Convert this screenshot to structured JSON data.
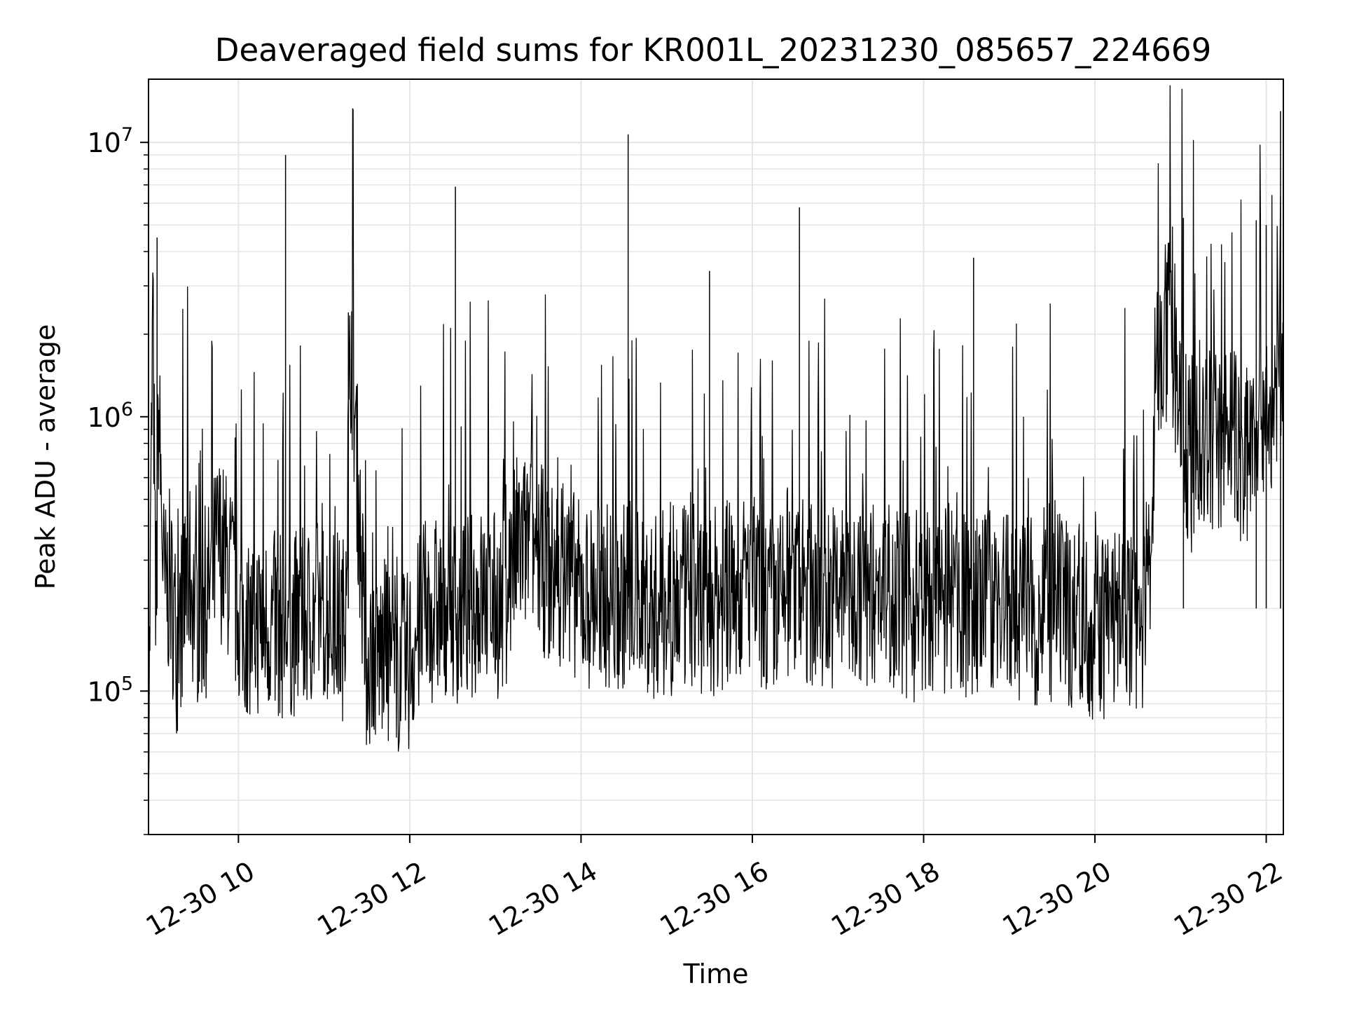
{
  "chart_data": {
    "type": "line",
    "title": "Deaveraged field sums for KR001L_20231230_085657_224669",
    "xlabel": "Time",
    "ylabel": "Peak ADU - average",
    "xscale": "time",
    "yscale": "log",
    "xlim": [
      "2023-12-30 08:57",
      "2023-12-30 22:12"
    ],
    "ylim": [
      30000,
      17000000
    ],
    "x_ticks": [
      "2023-12-30 10:00",
      "2023-12-30 12:00",
      "2023-12-30 14:00",
      "2023-12-30 16:00",
      "2023-12-30 18:00",
      "2023-12-30 20:00",
      "2023-12-30 22:00"
    ],
    "x_tick_labels": [
      "12-30 10",
      "12-30 12",
      "12-30 14",
      "12-30 16",
      "12-30 18",
      "12-30 20",
      "12-30 22"
    ],
    "y_ticks": [
      {
        "value": 100000,
        "base": "10",
        "exp": "5"
      },
      {
        "value": 1000000,
        "base": "10",
        "exp": "6"
      },
      {
        "value": 10000000,
        "base": "10",
        "exp": "7"
      }
    ],
    "grid": true,
    "minor_grid": true,
    "line_color": "#000000",
    "grid_color": "#e5e5e5",
    "series": [
      {
        "x": [
          "2023-12-30 08:57",
          "2023-12-30 09:00",
          "2023-12-30 09:02",
          "2023-12-30 09:04",
          "2023-12-30 09:08",
          "2023-12-30 09:12",
          "2023-12-30 09:17",
          "2023-12-30 09:25",
          "2023-12-30 09:31",
          "2023-12-30 09:38",
          "2023-12-30 09:46",
          "2023-12-30 09:55",
          "2023-12-30 10:03",
          "2023-12-30 10:17",
          "2023-12-30 10:32",
          "2023-12-30 10:44",
          "2023-12-30 10:58",
          "2023-12-30 11:14",
          "2023-12-30 11:19",
          "2023-12-30 11:29",
          "2023-12-30 11:43",
          "2023-12-30 11:57",
          "2023-12-30 12:10",
          "2023-12-30 12:28",
          "2023-12-30 12:35",
          "2023-12-30 12:51",
          "2023-12-30 13:04",
          "2023-12-30 13:15",
          "2023-12-30 13:26",
          "2023-12-30 13:39",
          "2023-12-30 13:50",
          "2023-12-30 14:00",
          "2023-12-30 14:14",
          "2023-12-30 14:28",
          "2023-12-30 14:33",
          "2023-12-30 14:48",
          "2023-12-30 15:02",
          "2023-12-30 15:19",
          "2023-12-30 15:31",
          "2023-12-30 15:45",
          "2023-12-30 15:58",
          "2023-12-30 16:13",
          "2023-12-30 16:33",
          "2023-12-30 16:47",
          "2023-12-30 17:01",
          "2023-12-30 17:18",
          "2023-12-30 17:35",
          "2023-12-30 17:50",
          "2023-12-30 18:05",
          "2023-12-30 18:18",
          "2023-12-30 18:37",
          "2023-12-30 18:51",
          "2023-12-30 19:06",
          "2023-12-30 19:21",
          "2023-12-30 19:36",
          "2023-12-30 19:52",
          "2023-12-30 20:05",
          "2023-12-30 20:21",
          "2023-12-30 20:33",
          "2023-12-30 20:38",
          "2023-12-30 20:43",
          "2023-12-30 20:54",
          "2023-12-30 21:06",
          "2023-12-30 21:19",
          "2023-12-30 21:34",
          "2023-12-30 21:44",
          "2023-12-30 21:57",
          "2023-12-30 22:06",
          "2023-12-30 22:09",
          "2023-12-30 22:12"
        ],
        "y": [
          50000,
          2500000,
          180000,
          1100000,
          220000,
          250000,
          150000,
          280000,
          190000,
          210000,
          350000,
          260000,
          170000,
          180000,
          170000,
          180000,
          200000,
          170000,
          2000000,
          130000,
          140000,
          120000,
          190000,
          210000,
          190000,
          220000,
          200000,
          330000,
          350000,
          260000,
          280000,
          220000,
          230000,
          210000,
          250000,
          200000,
          210000,
          220000,
          210000,
          230000,
          250000,
          200000,
          230000,
          220000,
          230000,
          220000,
          240000,
          200000,
          210000,
          210000,
          200000,
          220000,
          200000,
          190000,
          200000,
          180000,
          170000,
          200000,
          180000,
          260000,
          1800000,
          2000000,
          700000,
          800000,
          900000,
          700000,
          1200000,
          900000,
          2500000,
          900000
        ]
      }
    ],
    "spikes": [
      {
        "x": "2023-12-30 09:03",
        "y": 4500000
      },
      {
        "x": "2023-12-30 10:33",
        "y": 9000000
      },
      {
        "x": "2023-12-30 11:17",
        "y": 2400000
      },
      {
        "x": "2023-12-30 12:32",
        "y": 6900000
      },
      {
        "x": "2023-12-30 14:33",
        "y": 10700000
      },
      {
        "x": "2023-12-30 15:30",
        "y": 3400000
      },
      {
        "x": "2023-12-30 16:33",
        "y": 5800000
      },
      {
        "x": "2023-12-30 18:35",
        "y": 3800000
      },
      {
        "x": "2023-12-30 21:02",
        "y": 5300000
      },
      {
        "x": "2023-12-30 21:53",
        "y": 5200000
      },
      {
        "x": "2023-12-30 22:00",
        "y": 5000000
      },
      {
        "x": "2023-12-30 22:10",
        "y": 13000000
      }
    ]
  }
}
